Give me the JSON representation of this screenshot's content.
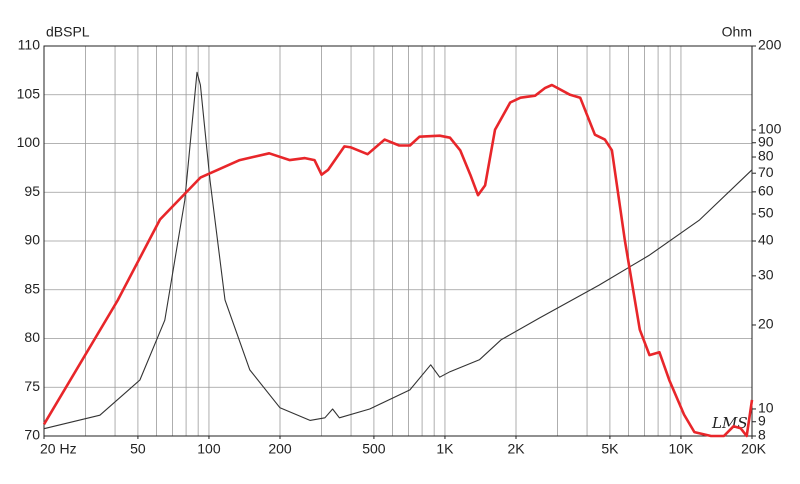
{
  "chart_data": {
    "type": "line",
    "y_label": "dBSPL",
    "y2_label": "Ohm",
    "watermark": "LMS",
    "xscale": "log",
    "y2scale": "log",
    "grid": true,
    "xlim": [
      20,
      20000
    ],
    "ylim": [
      70,
      110
    ],
    "y2lim": [
      8,
      200
    ],
    "xticks": [
      {
        "value": 20,
        "label": "20 Hz"
      },
      50,
      100,
      200,
      500,
      {
        "value": 1000,
        "label": "1K"
      },
      {
        "value": 2000,
        "label": "2K"
      },
      {
        "value": 5000,
        "label": "5K"
      },
      {
        "value": 10000,
        "label": "10K"
      },
      {
        "value": 20000,
        "label": "20K"
      }
    ],
    "xgrid": [
      30,
      40,
      50,
      60,
      70,
      80,
      90,
      100,
      200,
      300,
      400,
      500,
      600,
      700,
      800,
      900,
      1000,
      2000,
      3000,
      4000,
      5000,
      6000,
      7000,
      8000,
      9000,
      10000
    ],
    "yticks": [
      70,
      75,
      80,
      85,
      90,
      95,
      100,
      105,
      110
    ],
    "y2ticks": [
      8,
      9,
      10,
      20,
      30,
      40,
      50,
      60,
      70,
      80,
      90,
      100,
      200
    ],
    "series": [
      {
        "color": "#e8262a",
        "axis": "y",
        "x": [
          20,
          41,
          62,
          92,
          135,
          180,
          220,
          255,
          280,
          300,
          320,
          375,
          400,
          470,
          555,
          640,
          710,
          780,
          950,
          1050,
          1160,
          1280,
          1380,
          1480,
          1630,
          1890,
          2090,
          2410,
          2660,
          2840,
          3390,
          3740,
          4320,
          4760,
          5100,
          5780,
          6690,
          7360,
          8100,
          8930,
          10300,
          11400,
          13400,
          15200,
          16700,
          17900,
          19000,
          20000
        ],
        "values": [
          71.2,
          83.9,
          92.2,
          96.5,
          98.3,
          99,
          98.3,
          98.5,
          98.3,
          96.8,
          97.3,
          99.7,
          99.6,
          98.9,
          100.4,
          99.8,
          99.8,
          100.7,
          100.8,
          100.6,
          99.3,
          96.8,
          94.7,
          95.7,
          101.4,
          104.2,
          104.7,
          104.9,
          105.7,
          106,
          105,
          104.7,
          100.9,
          100.4,
          99.3,
          90.1,
          80.9,
          78.3,
          78.6,
          75.7,
          72.2,
          70.4,
          70,
          70,
          71,
          70.8,
          70,
          73.7
        ]
      },
      {
        "color": "#333333",
        "axis": "y2",
        "x": [
          20,
          34.5,
          51,
          65,
          79,
          89,
          92,
          101,
          117,
          149,
          200,
          268,
          310,
          334,
          357,
          480,
          710,
          870,
          950,
          1050,
          1400,
          1730,
          2520,
          4500,
          7360,
          12000,
          20000
        ],
        "values": [
          8.5,
          9.5,
          12.7,
          20.8,
          56,
          161,
          145,
          66,
          24.6,
          13.8,
          10.1,
          9.1,
          9.3,
          10,
          9.3,
          10,
          11.7,
          14.4,
          13,
          13.6,
          15,
          17.7,
          21.2,
          27.8,
          35.6,
          47.6,
          72
        ]
      }
    ]
  }
}
